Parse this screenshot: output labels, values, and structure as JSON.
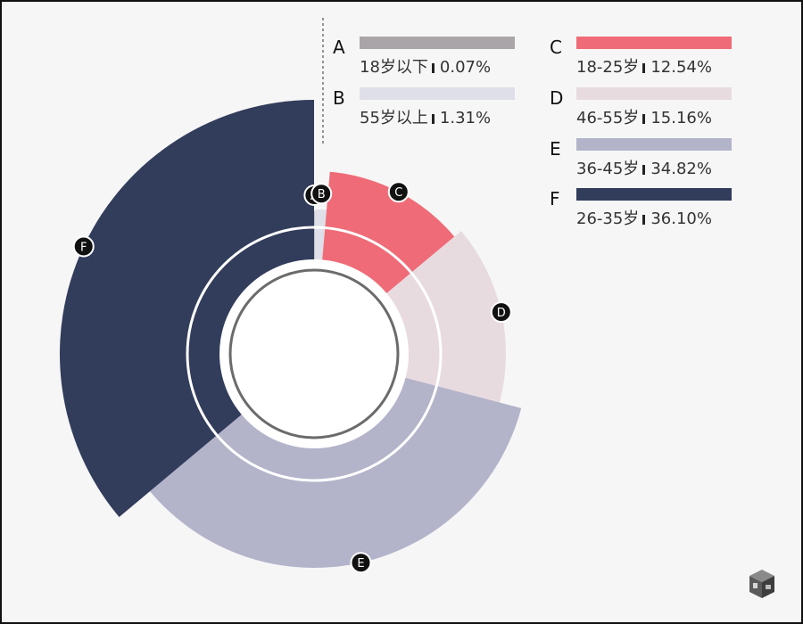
{
  "chart_data": {
    "type": "pie",
    "variant": "rose-donut",
    "categories": [
      "A",
      "B",
      "C",
      "D",
      "E",
      "F"
    ],
    "labels": [
      "18岁以下",
      "55岁以上",
      "18-25岁",
      "46-55岁",
      "36-45岁",
      "26-35岁"
    ],
    "values": [
      0.07,
      1.31,
      12.54,
      15.16,
      34.82,
      36.1
    ],
    "value_labels": [
      "0.07%",
      "1.31%",
      "12.54%",
      "15.16%",
      "34.82%",
      "36.10%"
    ],
    "colors": [
      "#aaa5a8",
      "#dedfe8",
      "#ef6b77",
      "#e8dbe0",
      "#b3b3ca",
      "#323c5b"
    ],
    "legend": "top-right"
  },
  "legend": [
    {
      "letter": "A",
      "label": "18岁以下",
      "value": "0.07%"
    },
    {
      "letter": "B",
      "label": "55岁以上",
      "value": "1.31%"
    },
    {
      "letter": "C",
      "label": "18-25岁",
      "value": "12.54%"
    },
    {
      "letter": "D",
      "label": "46-55岁",
      "value": "15.16%"
    },
    {
      "letter": "E",
      "label": "36-45岁",
      "value": "34.82%"
    },
    {
      "letter": "F",
      "label": "26-35岁",
      "value": "36.10%"
    }
  ],
  "logo_icon": "cube-logo-icon"
}
